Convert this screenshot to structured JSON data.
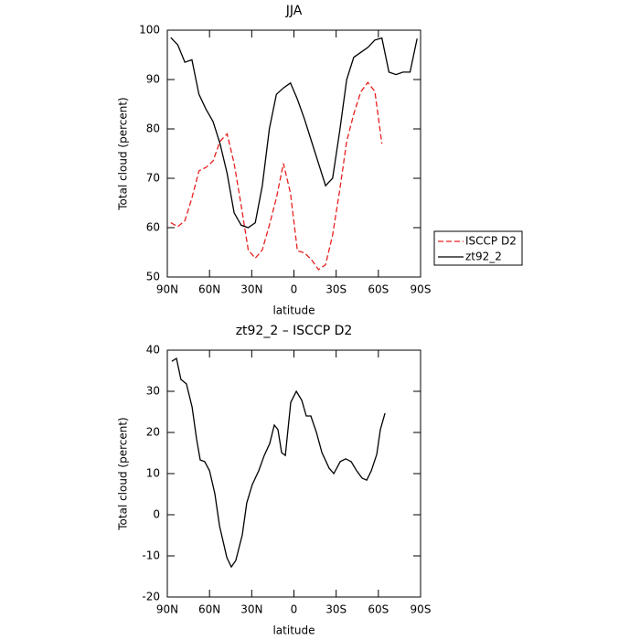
{
  "chart_data": [
    {
      "type": "line",
      "title": "JJA",
      "ylabel": "Total cloud (percent)",
      "xlabel": "latitude",
      "x": [
        87.5,
        82.5,
        77.5,
        72.5,
        67.5,
        62.5,
        57.5,
        52.5,
        47.5,
        42.5,
        37.5,
        32.5,
        27.5,
        22.5,
        17.5,
        12.5,
        7.5,
        2.5,
        -2.5,
        -7.5,
        -12.5,
        -17.5,
        -22.5,
        -27.5,
        -32.5,
        -37.5,
        -42.5,
        -47.5,
        -52.5,
        -57.5,
        -62.5,
        -67.5,
        -72.5,
        -77.5,
        -82.5,
        -87.5
      ],
      "series": [
        {
          "name": "ISCCP D2",
          "color": "#e8201e",
          "style": "dashed",
          "values": [
            61,
            60.2,
            61.4,
            66,
            71.5,
            72.2,
            73.5,
            77.5,
            79,
            73,
            64.5,
            55.5,
            53.8,
            55.5,
            60.5,
            66,
            73,
            67,
            55.3,
            54.9,
            53.5,
            51.5,
            52.5,
            58.5,
            67.5,
            77.5,
            83,
            87.5,
            89.4,
            87.6,
            77,
            null,
            null,
            null,
            null,
            null
          ]
        },
        {
          "name": "zt92_2",
          "color": "#000000",
          "style": "solid",
          "values": [
            98.5,
            97,
            93.5,
            94,
            87,
            84,
            81.5,
            77,
            71,
            63,
            60.5,
            60,
            61,
            68.5,
            80,
            87,
            88.3,
            89.3,
            86,
            82,
            77.5,
            73,
            68.5,
            70,
            79.5,
            90,
            94.5,
            95.5,
            96.5,
            98,
            98.4,
            91.5,
            91,
            91.5,
            91.5,
            98.3
          ]
        }
      ],
      "xlim": [
        90,
        -90
      ],
      "xticks": [
        {
          "value": 90,
          "label": "90N"
        },
        {
          "value": 60,
          "label": "60N"
        },
        {
          "value": 30,
          "label": "30N"
        },
        0,
        {
          "value": -30,
          "label": "30S"
        },
        {
          "value": -60,
          "label": "60S"
        },
        {
          "value": -90,
          "label": "90S"
        }
      ],
      "ylim": [
        50,
        100
      ],
      "yticks": [
        50,
        60,
        70,
        80,
        90,
        100
      ],
      "legend": "right"
    },
    {
      "type": "line",
      "title": "zt92_2 – ISCCP D2",
      "ylabel": "Total cloud (percent)",
      "xlabel": "latitude",
      "x": [
        86.8,
        83.5,
        80.3,
        76.4,
        72.4,
        69.2,
        66.6,
        63.4,
        60,
        56.2,
        52.9,
        47.7,
        44.5,
        41.3,
        36.7,
        33.5,
        29.6,
        25,
        21.1,
        17.2,
        14,
        11.4,
        8.8,
        6.1,
        2.3,
        -1.7,
        -5.6,
        -8.8,
        -12,
        -16,
        -19.9,
        -25,
        -28.3,
        -32.9,
        -36.8,
        -40.7,
        -44.6,
        -48.5,
        -51.7,
        -55,
        -58.9,
        -61.4,
        -64.7
      ],
      "color": "#000000",
      "values": [
        37.3,
        38,
        32.9,
        31.8,
        26.2,
        18.4,
        13.3,
        12.9,
        10.7,
        5.1,
        -2.7,
        -10.4,
        -12.7,
        -11.1,
        -4.9,
        2.9,
        7.3,
        10.7,
        14.4,
        17.3,
        21.8,
        20.7,
        15.1,
        14.4,
        27.3,
        30,
        27.8,
        24,
        24,
        20,
        15.1,
        11.3,
        10,
        12.9,
        13.6,
        12.9,
        10.7,
        8.9,
        8.4,
        10.7,
        14.7,
        20.7,
        24.7
      ],
      "xlim": [
        90,
        -90
      ],
      "xticks": [
        {
          "value": 90,
          "label": "90N"
        },
        {
          "value": 60,
          "label": "60N"
        },
        {
          "value": 30,
          "label": "30N"
        },
        0,
        {
          "value": -30,
          "label": "30S"
        },
        {
          "value": -60,
          "label": "60S"
        },
        {
          "value": -90,
          "label": "90S"
        }
      ],
      "ylim": [
        -20,
        40
      ],
      "yticks": [
        -20,
        -10,
        0,
        10,
        20,
        30,
        40
      ]
    }
  ]
}
